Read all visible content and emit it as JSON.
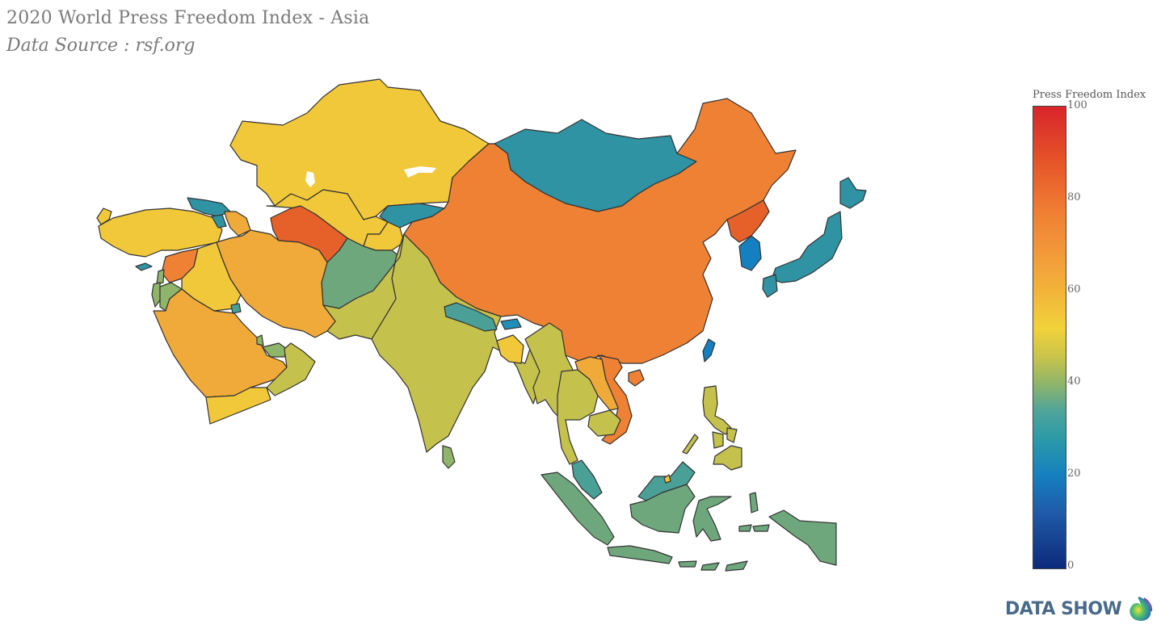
{
  "title": "2020 World Press Freedom Index - Asia",
  "subtitle": "Data Source : rsf.org",
  "legend": {
    "title": "Press Freedom Index",
    "ticks": [
      "100",
      "80",
      "60",
      "40",
      "20",
      "0"
    ]
  },
  "logo": {
    "text": "DATA SHOW",
    "icon": "globe-icon"
  },
  "colors": {
    "bluest": "#0d2a7a",
    "blue": "#1580bf",
    "teal": "#2f93a3",
    "green": "#6fa77c",
    "olive": "#c5c14d",
    "yellow": "#f0c83a",
    "light_orange": "#f0aa3a",
    "orange": "#ee8134",
    "dark_orange": "#e6602a",
    "red": "#d8242a"
  }
}
